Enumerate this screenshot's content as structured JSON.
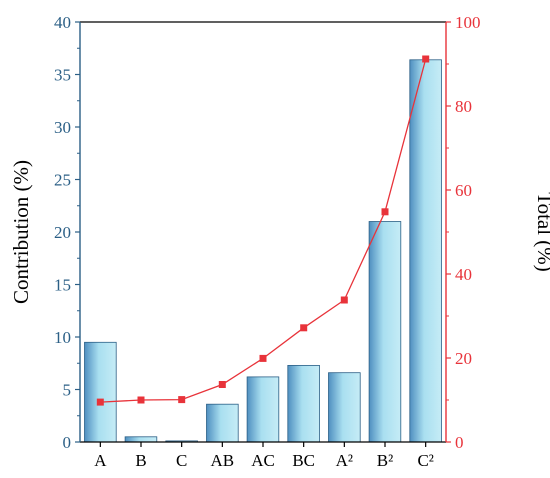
{
  "chart_data": {
    "type": "bar",
    "categories": [
      "A",
      "B",
      "C",
      "AB",
      "AC",
      "BC",
      "A²",
      "B²",
      "C²"
    ],
    "series": [
      {
        "axis": "left",
        "chart_type": "bar",
        "values": [
          9.5,
          0.5,
          0.1,
          3.6,
          6.2,
          7.3,
          6.6,
          21.0,
          36.4
        ]
      },
      {
        "axis": "right",
        "chart_type": "line",
        "values": [
          9.5,
          10.0,
          10.1,
          13.7,
          19.9,
          27.2,
          33.8,
          54.8,
          91.2
        ]
      }
    ],
    "ylabel": "Contribution (%)",
    "y2label": "Total (%)",
    "ylim": [
      0,
      40
    ],
    "y2lim": [
      0,
      100
    ],
    "yticks": [
      0,
      5,
      10,
      15,
      20,
      25,
      30,
      35,
      40
    ],
    "y2ticks": [
      0,
      20,
      40,
      60,
      80,
      100
    ],
    "grid": false,
    "colors": {
      "bar_fill": "#a9dff0",
      "bar_stroke": "#2b5f86",
      "left_axis": "#2b5f86",
      "right_axis": "#e8333a",
      "line": "#e8333a"
    }
  }
}
